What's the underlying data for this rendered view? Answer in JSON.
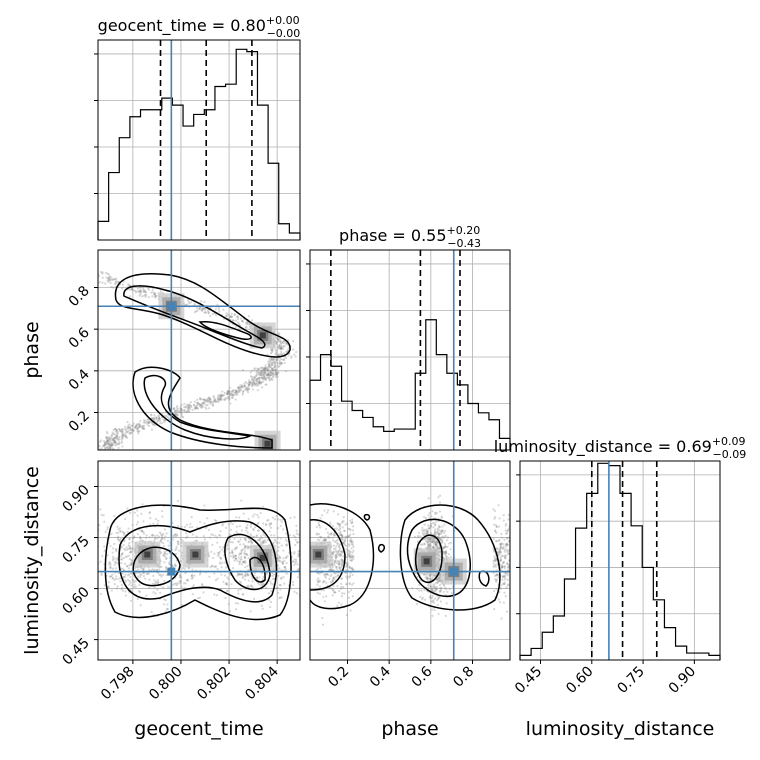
{
  "chart_data": {
    "type": "corner",
    "params": [
      "geocent_time",
      "phase",
      "luminosity_distance"
    ],
    "ranges": {
      "geocent_time": [
        0.79655,
        0.80495
      ],
      "phase": [
        0.02,
        0.98
      ],
      "luminosity_distance": [
        0.39,
        0.975
      ]
    },
    "ticks": {
      "geocent_time": [
        "0.798",
        "0.800",
        "0.802",
        "0.804"
      ],
      "phase": [
        "0.2",
        "0.4",
        "0.6",
        "0.8"
      ],
      "luminosity_distance": [
        "0.45",
        "0.60",
        "0.75",
        "0.90"
      ]
    },
    "truths": {
      "geocent_time": 0.7996,
      "phase": 0.71,
      "luminosity_distance": 0.65
    },
    "titles": {
      "geocent_time": {
        "name": "geocent_time",
        "median": "0.80",
        "plus": "+0.00",
        "minus": "−0.00"
      },
      "phase": {
        "name": "phase",
        "median": "0.55",
        "plus": "+0.20",
        "minus": "−0.43"
      },
      "luminosity_distance": {
        "name": "luminosity_distance",
        "median": "0.69",
        "plus": "+0.09",
        "minus": "−0.09"
      }
    },
    "quantiles": {
      "geocent_time": [
        0.79915,
        0.80105,
        0.80295
      ],
      "phase": [
        0.12,
        0.55,
        0.74
      ],
      "luminosity_distance": [
        0.6,
        0.69,
        0.79
      ]
    },
    "histograms": {
      "geocent_time": [
        0.08,
        0.29,
        0.44,
        0.53,
        0.56,
        0.56,
        0.61,
        0.58,
        0.49,
        0.54,
        0.56,
        0.66,
        0.67,
        0.82,
        0.81,
        0.58,
        0.33,
        0.07,
        0.03
      ],
      "phase": [
        0.3,
        0.41,
        0.36,
        0.21,
        0.17,
        0.14,
        0.1,
        0.08,
        0.09,
        0.09,
        0.33,
        0.56,
        0.41,
        0.33,
        0.28,
        0.2,
        0.16,
        0.13,
        0.05
      ],
      "luminosity_distance": [
        0.02,
        0.05,
        0.12,
        0.19,
        0.35,
        0.57,
        0.72,
        0.85,
        0.84,
        0.72,
        0.58,
        0.4,
        0.26,
        0.14,
        0.06,
        0.03,
        0.03,
        0.02
      ]
    },
    "density_peaks": {
      "geocent_time_phase": [
        [
          0.7996,
          0.71
        ],
        [
          0.8034,
          0.57
        ],
        [
          0.8036,
          0.05
        ]
      ],
      "geocent_time_luminosity_distance": [
        [
          0.7986,
          0.7
        ],
        [
          0.8006,
          0.7
        ],
        [
          0.8034,
          0.69
        ]
      ],
      "phase_luminosity_distance": [
        [
          0.06,
          0.7
        ],
        [
          0.58,
          0.68
        ],
        [
          0.71,
          0.65
        ]
      ]
    },
    "axis_labels": {
      "x": [
        "geocent_time",
        "phase",
        "luminosity_distance"
      ],
      "y": [
        "phase",
        "luminosity_distance"
      ]
    },
    "grid": true
  }
}
